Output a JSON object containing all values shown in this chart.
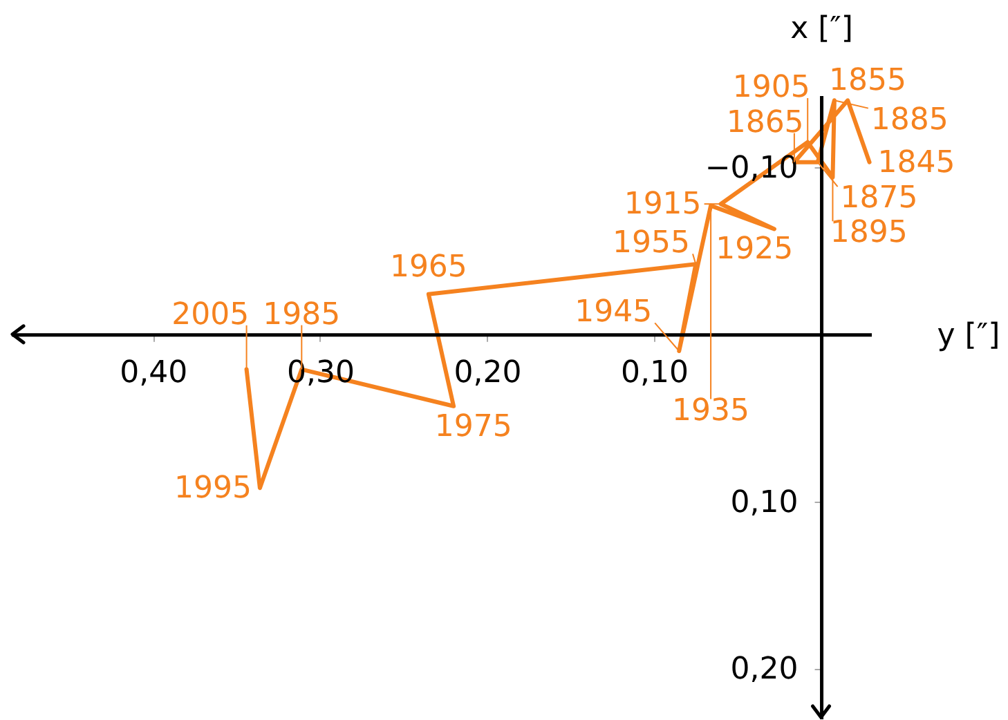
{
  "chart_data": {
    "type": "line",
    "xlabel": "y [″]",
    "ylabel": "x [″]",
    "x": [
      -0.029,
      -0.016,
      0.016,
      0.002,
      -0.008,
      -0.007,
      0.008,
      0.06,
      0.028,
      0.066,
      0.085,
      0.075,
      0.235,
      0.22,
      0.311,
      0.336,
      0.344
    ],
    "series": [
      {
        "color": "#f5821f",
        "values": [
          -0.103,
          -0.14,
          -0.103,
          -0.103,
          -0.14,
          -0.094,
          -0.115,
          -0.078,
          -0.063,
          -0.077,
          0.01,
          -0.042,
          -0.024,
          0.043,
          0.021,
          0.092,
          0.021
        ]
      }
    ],
    "annotations": [
      {
        "text": "1845",
        "x": -0.029,
        "y": -0.103
      },
      {
        "text": "1855",
        "x": -0.016,
        "y": -0.14
      },
      {
        "text": "1865",
        "x": 0.016,
        "y": -0.103
      },
      {
        "text": "1875",
        "x": 0.002,
        "y": -0.103
      },
      {
        "text": "1885",
        "x": -0.008,
        "y": -0.14
      },
      {
        "text": "1895",
        "x": -0.007,
        "y": -0.094
      },
      {
        "text": "1905",
        "x": 0.008,
        "y": -0.115
      },
      {
        "text": "1915",
        "x": 0.06,
        "y": -0.078
      },
      {
        "text": "1925",
        "x": 0.028,
        "y": -0.063
      },
      {
        "text": "1935",
        "x": 0.066,
        "y": -0.077
      },
      {
        "text": "1945",
        "x": 0.085,
        "y": 0.01
      },
      {
        "text": "1955",
        "x": 0.075,
        "y": -0.042
      },
      {
        "text": "1965",
        "x": 0.235,
        "y": -0.024
      },
      {
        "text": "1975",
        "x": 0.22,
        "y": 0.043
      },
      {
        "text": "1985",
        "x": 0.311,
        "y": 0.021
      },
      {
        "text": "1995",
        "x": 0.336,
        "y": 0.092
      },
      {
        "text": "2005",
        "x": 0.344,
        "y": 0.021
      }
    ],
    "xlim": [
      0.485,
      -0.03
    ],
    "ylim": [
      0.23,
      -0.143
    ],
    "xticks": [
      {
        "value": 0.1,
        "label": "0,10"
      },
      {
        "value": 0.2,
        "label": "0,20"
      },
      {
        "value": 0.3,
        "label": "0,30"
      },
      {
        "value": 0.4,
        "label": "0,40"
      }
    ],
    "yticks": [
      {
        "value": -0.1,
        "label": "−0,10"
      },
      {
        "value": 0.1,
        "label": "0,10"
      },
      {
        "value": 0.2,
        "label": "0,20"
      }
    ],
    "marker": "none",
    "line_style": "solid"
  }
}
